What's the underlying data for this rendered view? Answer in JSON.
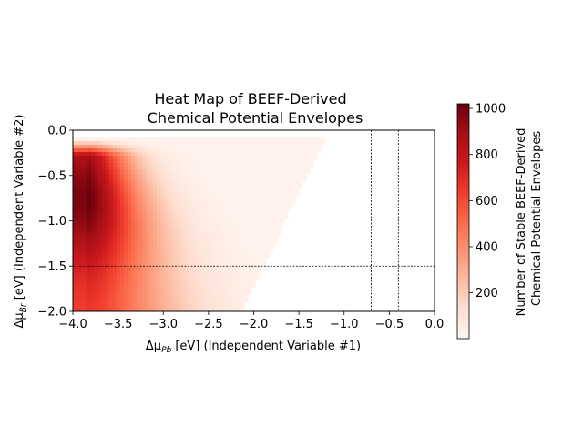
{
  "chart_data": {
    "type": "heatmap",
    "title_line1": "Heat Map of BEEF-Derived",
    "title_line2": "Chemical Potential Envelopes",
    "xlabel_prefix": "Δμ",
    "xlabel_sub": "Pb",
    "xlabel_suffix": " [eV] (Independent Variable #1)",
    "ylabel_prefix": "Δμ",
    "ylabel_sub": "Br",
    "ylabel_suffix": " [eV] (Independent Variable #2)",
    "xlim": [
      -4.0,
      0.0
    ],
    "ylim": [
      -2.0,
      0.0
    ],
    "xticks": [
      -4.0,
      -3.5,
      -3.0,
      -2.5,
      -2.0,
      -1.5,
      -1.0,
      -0.5,
      0.0
    ],
    "xtick_labels": [
      "−4.0",
      "−3.5",
      "−3.0",
      "−2.5",
      "−2.0",
      "−1.5",
      "−1.0",
      "−0.5",
      "0.0"
    ],
    "yticks": [
      0.0,
      -0.5,
      -1.0,
      -1.5,
      -2.0
    ],
    "ytick_labels": [
      "0.0",
      "−0.5",
      "−1.0",
      "−1.5",
      "−2.0"
    ],
    "colorbar": {
      "label_line1": "Number of Stable BEEF-Derived",
      "label_line2": "Chemical Potential Envelopes",
      "range": [
        1,
        1020
      ],
      "ticks": [
        200,
        400,
        600,
        800,
        1000
      ],
      "tick_labels": [
        "200",
        "400",
        "600",
        "800",
        "1000"
      ],
      "colormap": "Reds"
    },
    "reference_lines": {
      "vertical_x": [
        -0.7,
        -0.4
      ],
      "horizontal_y": [
        -1.5
      ],
      "style": "dashed black"
    },
    "region": {
      "description_values": {
        "y_top": -0.1,
        "right_edge_at_top_x": -1.2,
        "right_edge_at_bottom_x": -2.15,
        "peak_x": -3.85,
        "peak_y": -0.75,
        "peak_value": 1000
      }
    }
  }
}
